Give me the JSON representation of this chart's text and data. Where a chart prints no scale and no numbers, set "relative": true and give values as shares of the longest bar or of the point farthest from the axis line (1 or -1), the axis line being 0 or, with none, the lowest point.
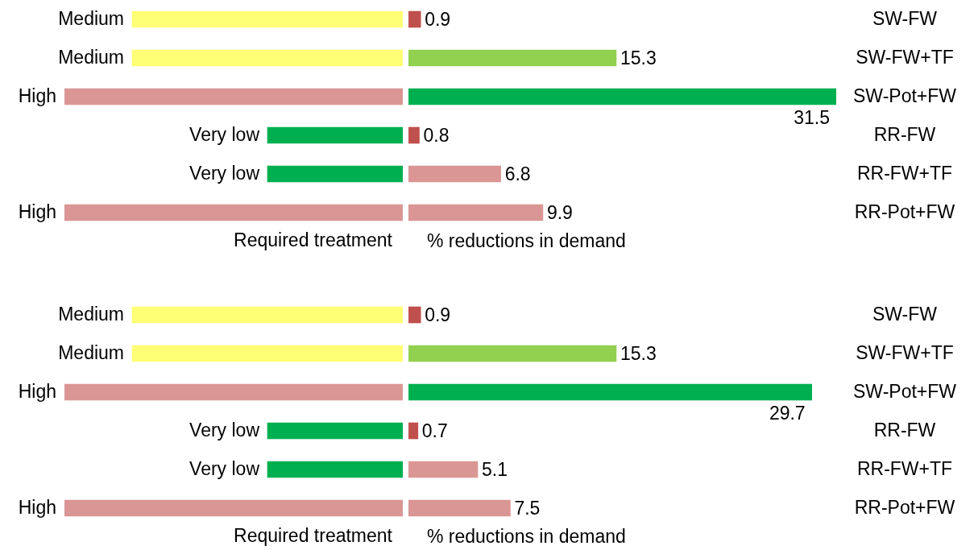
{
  "chart_data": [
    {
      "type": "bar",
      "orientation": "horizontal",
      "relative": true,
      "categories": [
        "Medium",
        "Medium",
        "High",
        "Very low",
        "Very low",
        "High"
      ],
      "values": [
        -0.8,
        -0.8,
        -1,
        -0.4,
        -0.4,
        -1
      ],
      "colors": [
        "#ffff75",
        "#ffff75",
        "#da9694",
        "#00b050",
        "#00b050",
        "#da9694"
      ],
      "xlabel": "Required treatment"
    },
    {
      "type": "bar",
      "orientation": "horizontal",
      "categories": [
        "SW-FW",
        "SW-FW+TF",
        "SW-Pot+FW",
        "RR-FW",
        "RR-FW+TF",
        "RR-Pot+FW"
      ],
      "values": [
        0.9,
        15.3,
        31.5,
        0.8,
        6.8,
        9.9
      ],
      "colors": [
        "#c0504d",
        "#92d050",
        "#00b050",
        "#c0504d",
        "#da9694",
        "#da9694"
      ],
      "data_labels": true,
      "tick_labels": "y",
      "xlabel": "% reductions in demand"
    },
    {
      "type": "bar",
      "orientation": "horizontal",
      "relative": true,
      "categories": [
        "Medium",
        "Medium",
        "High",
        "Very low",
        "Very low",
        "High"
      ],
      "values": [
        -0.8,
        -0.8,
        -1,
        -0.4,
        -0.4,
        -1
      ],
      "colors": [
        "#ffff75",
        "#ffff75",
        "#da9694",
        "#00b050",
        "#00b050",
        "#da9694"
      ],
      "xlabel": "Required treatment"
    },
    {
      "type": "bar",
      "orientation": "horizontal",
      "categories": [
        "SW-FW",
        "SW-FW+TF",
        "SW-Pot+FW",
        "RR-FW",
        "RR-FW+TF",
        "RR-Pot+FW"
      ],
      "values": [
        0.9,
        15.3,
        29.7,
        0.7,
        5.1,
        7.5
      ],
      "colors": [
        "#c0504d",
        "#92d050",
        "#00b050",
        "#c0504d",
        "#da9694",
        "#da9694"
      ],
      "data_labels": true,
      "tick_labels": "y",
      "xlabel": "% reductions in demand"
    }
  ]
}
